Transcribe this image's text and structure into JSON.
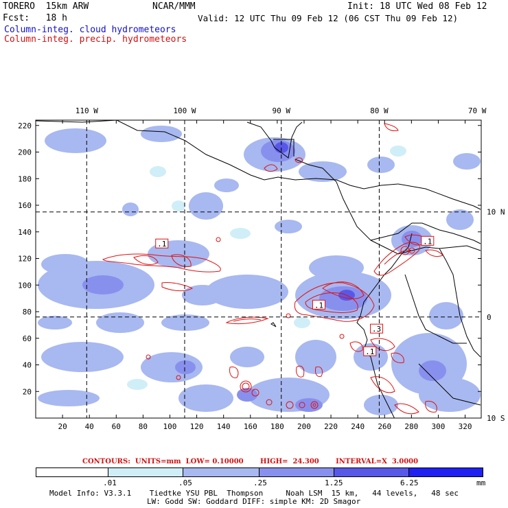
{
  "header": {
    "model": "TORERO  15km ARW",
    "center": "NCAR/MMM",
    "init": "Init: 18 UTC Wed 08 Feb 12",
    "fcst": "Fcst:   18 h",
    "valid": "Valid: 12 UTC Thu 09 Feb 12 (06 CST Thu 09 Feb 12)",
    "field1": "Column-integ. cloud hydrometeors",
    "field2": "Column-integ. precip. hydrometeors"
  },
  "map": {
    "lon_labels": [
      "110 W",
      "100 W",
      "90 W",
      "80 W",
      "70 W"
    ],
    "lat_labels": [
      "10 N",
      "0",
      "10 S"
    ],
    "x_ticks": [
      "20",
      "40",
      "60",
      "80",
      "100",
      "120",
      "140",
      "160",
      "180",
      "200",
      "220",
      "240",
      "260",
      "280",
      "300",
      "320"
    ],
    "y_ticks": [
      "20",
      "40",
      "60",
      "80",
      "100",
      "120",
      "140",
      "160",
      "180",
      "200",
      "220"
    ],
    "x_range": [
      0,
      332
    ],
    "y_range": [
      0,
      224
    ],
    "contour_labels": [
      {
        "text": ".1",
        "gx": 94,
        "gy": 131
      },
      {
        "text": ".1",
        "gx": 211,
        "gy": 85
      },
      {
        "text": ".1",
        "gx": 292,
        "gy": 133
      },
      {
        "text": ".3",
        "gx": 254,
        "gy": 67
      },
      {
        "text": ".1",
        "gx": 249,
        "gy": 50
      }
    ],
    "colors": {
      "level1": "#cfeef8",
      "level2": "#a8b8f0",
      "level3": "#8890ee",
      "level4": "#5858e8",
      "level5": "#2020f0",
      "contour": "#e01010",
      "coast": "#000000"
    }
  },
  "contour_info": "CONTOURS:  UNITS=mm  LOW= 0.10000       HIGH=  24.300       INTERVAL=X  3.0000",
  "colorbar": {
    "labels": [
      ".01",
      ".05",
      ".25",
      "1.25",
      "6.25"
    ],
    "unit": "mm",
    "colors": [
      "#ffffff",
      "#cfeef8",
      "#a8b8f0",
      "#8890ee",
      "#5858e8",
      "#2020f0"
    ]
  },
  "footer": {
    "line1": "Model Info: V3.3.1    Tiedtke YSU PBL  Thompson     Noah LSM  15 km,   44 levels,   48 sec",
    "line2": "LW: Godd SW: Goddard DIFF: simple KM: 2D Smagor"
  }
}
